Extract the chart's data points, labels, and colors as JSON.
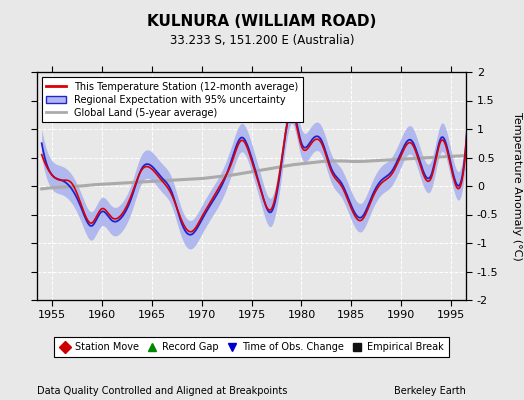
{
  "title": "KULNURA (WILLIAM ROAD)",
  "subtitle": "33.233 S, 151.200 E (Australia)",
  "xlabel_bottom": "Data Quality Controlled and Aligned at Breakpoints",
  "xlabel_right": "Berkeley Earth",
  "ylabel": "Temperature Anomaly (°C)",
  "xlim": [
    1953.5,
    1996.5
  ],
  "ylim": [
    -2.0,
    2.0
  ],
  "xticks": [
    1955,
    1960,
    1965,
    1970,
    1975,
    1980,
    1985,
    1990,
    1995
  ],
  "yticks": [
    -2.0,
    -1.5,
    -1.0,
    -0.5,
    0.0,
    0.5,
    1.0,
    1.5,
    2.0
  ],
  "bg_color": "#e8e8e8",
  "plot_bg_color": "#e8e8e8",
  "station_color": "#dd0000",
  "regional_color": "#2222cc",
  "regional_fill_color": "#b0b8ee",
  "global_color": "#aaaaaa",
  "legend_entries": [
    "This Temperature Station (12-month average)",
    "Regional Expectation with 95% uncertainty",
    "Global Land (5-year average)"
  ],
  "marker_legend": [
    {
      "label": "Station Move",
      "color": "#cc0000",
      "marker": "D"
    },
    {
      "label": "Record Gap",
      "color": "#008800",
      "marker": "^"
    },
    {
      "label": "Time of Obs. Change",
      "color": "#0000cc",
      "marker": "v"
    },
    {
      "label": "Empirical Break",
      "color": "#111111",
      "marker": "s"
    }
  ],
  "regional_annual": [
    0.75,
    0.2,
    0.1,
    -0.05,
    -0.4,
    -0.7,
    -0.45,
    -0.6,
    -0.55,
    -0.2,
    0.3,
    0.35,
    0.15,
    -0.1,
    -0.65,
    -0.85,
    -0.6,
    -0.3,
    0.0,
    0.45,
    0.85,
    0.5,
    -0.1,
    -0.45,
    0.4,
    1.35,
    0.75,
    0.8,
    0.8,
    0.3,
    0.05,
    -0.35,
    -0.55,
    -0.2,
    0.1,
    0.25,
    0.6,
    0.8,
    0.35,
    0.2,
    0.85,
    0.35,
    0.1
  ],
  "station_annual": [
    0.55,
    0.2,
    0.1,
    0.05,
    -0.35,
    -0.65,
    -0.4,
    -0.55,
    -0.5,
    -0.15,
    0.28,
    0.3,
    0.1,
    -0.15,
    -0.6,
    -0.8,
    -0.55,
    -0.25,
    0.05,
    0.4,
    0.8,
    0.45,
    -0.12,
    -0.4,
    0.45,
    1.3,
    0.7,
    0.75,
    0.75,
    0.25,
    0.0,
    -0.4,
    -0.6,
    -0.25,
    0.05,
    0.2,
    0.55,
    0.75,
    0.3,
    0.15,
    0.8,
    0.3,
    0.05
  ],
  "global_smooth": [
    -0.05,
    -0.03,
    -0.02,
    -0.01,
    0.0,
    0.02,
    0.03,
    0.04,
    0.05,
    0.06,
    0.07,
    0.08,
    0.09,
    0.1,
    0.11,
    0.12,
    0.13,
    0.15,
    0.17,
    0.19,
    0.22,
    0.25,
    0.28,
    0.31,
    0.34,
    0.37,
    0.39,
    0.41,
    0.43,
    0.44,
    0.44,
    0.43,
    0.43,
    0.44,
    0.45,
    0.46,
    0.47,
    0.48,
    0.49,
    0.5,
    0.51,
    0.52,
    0.53
  ]
}
